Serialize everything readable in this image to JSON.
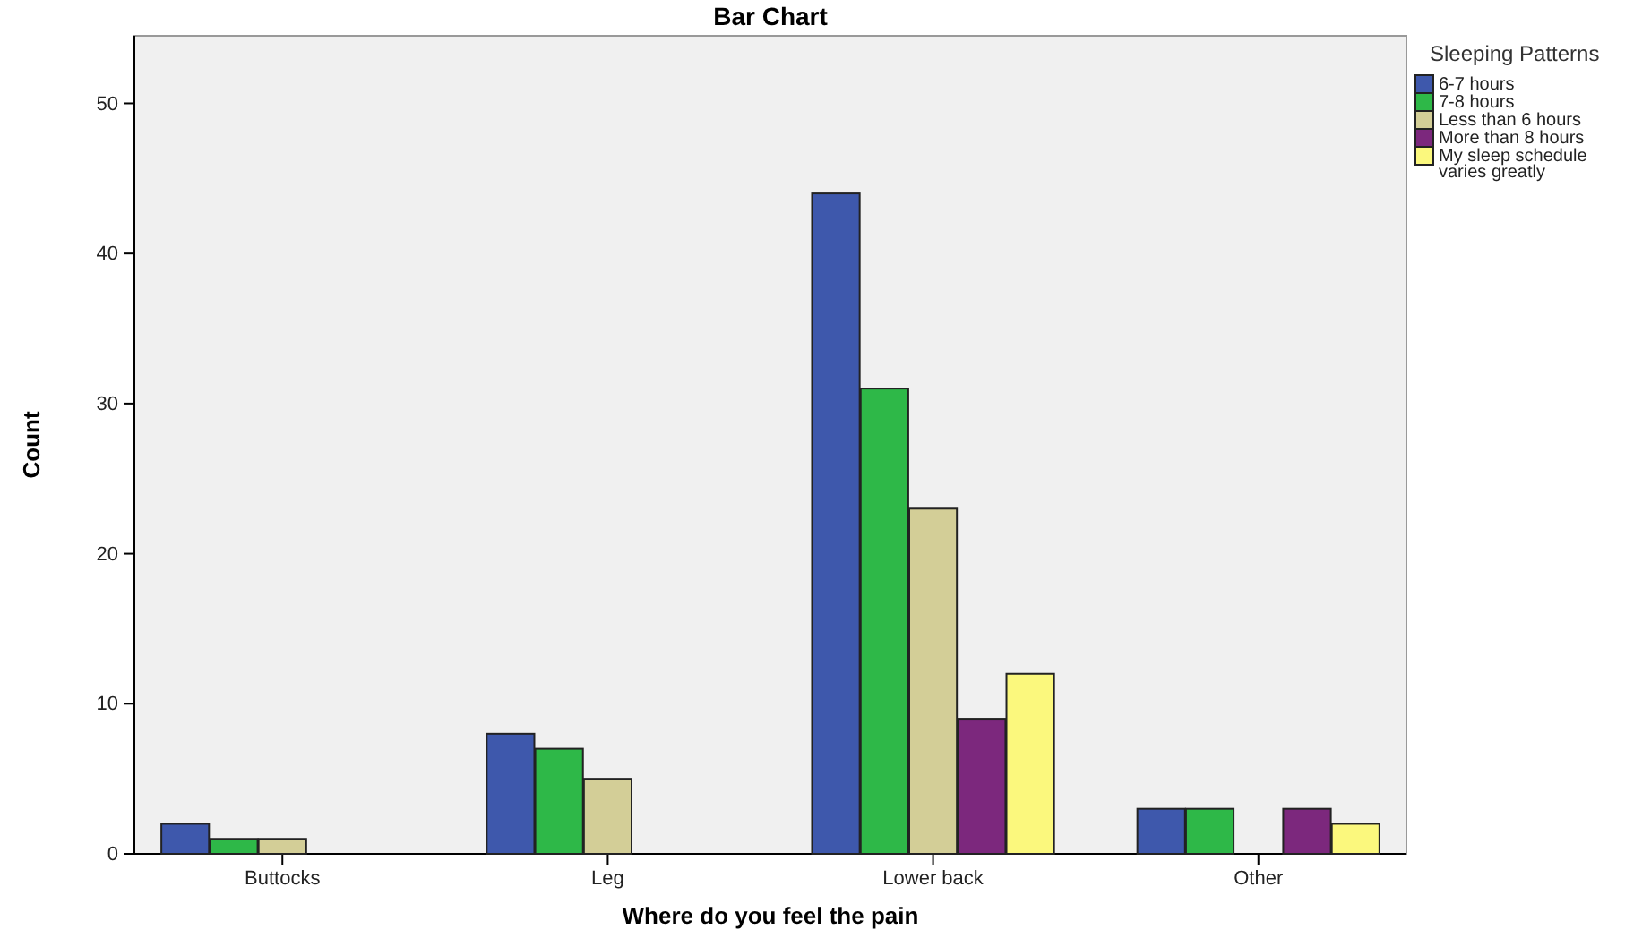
{
  "chart_data": {
    "type": "bar",
    "title": "Bar Chart",
    "xlabel": "Where do you feel the pain",
    "ylabel": "Count",
    "legend_title": "Sleeping Patterns",
    "categories": [
      "Buttocks",
      "Leg",
      "Lower back",
      "Other"
    ],
    "series": [
      {
        "name": "6-7 hours",
        "color": "#3e58ac",
        "values": [
          2,
          8,
          44,
          3
        ]
      },
      {
        "name": "7-8 hours",
        "color": "#2eb848",
        "values": [
          1,
          7,
          31,
          3
        ]
      },
      {
        "name": "Less than 6 hours",
        "color": "#d3ce97",
        "values": [
          1,
          5,
          23,
          null
        ]
      },
      {
        "name": "More than 8 hours",
        "color": "#7c287d",
        "values": [
          null,
          null,
          9,
          3
        ]
      },
      {
        "name": "My sleep schedule varies greatly",
        "color": "#fbf87d",
        "values": [
          null,
          null,
          12,
          2
        ]
      }
    ],
    "ylim": [
      0,
      54.5
    ],
    "yticks": [
      0,
      10,
      20,
      30,
      40,
      50
    ],
    "grid": false,
    "legend": "top right"
  }
}
